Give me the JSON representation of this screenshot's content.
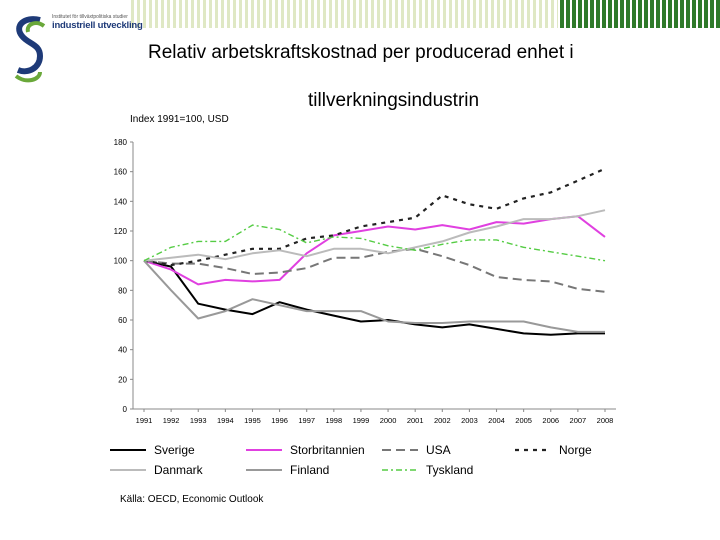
{
  "header": {
    "logo_line1": "Institutet för tillväxtpolitiska studier",
    "logo_line2": "industriell utveckling",
    "title_line1": "Relativ arbetskraftskostnad per producerad enhet i",
    "title_line2": "tillverkningsindustrin"
  },
  "chart_data": {
    "type": "line",
    "index_label": "Index 1991=100, USD",
    "x": [
      "1991",
      "1992",
      "1993",
      "1994",
      "1995",
      "1996",
      "1997",
      "1998",
      "1999",
      "2000",
      "2001",
      "2002",
      "2003",
      "2004",
      "2005",
      "2006",
      "2007",
      "2008"
    ],
    "ylim": [
      0,
      180
    ],
    "yticks": [
      0,
      20,
      40,
      60,
      80,
      100,
      120,
      140,
      160,
      180
    ],
    "grid": false,
    "legend_position": "bottom",
    "series": [
      {
        "name": "Sverige",
        "color": "#000000",
        "dash": "solid",
        "values": [
          100,
          96,
          71,
          67,
          64,
          72,
          67,
          63,
          59,
          60,
          57,
          55,
          57,
          54,
          51,
          50,
          51,
          51
        ]
      },
      {
        "name": "Storbritannien",
        "color": "#e040e0",
        "dash": "solid",
        "values": [
          100,
          94,
          84,
          87,
          86,
          87,
          105,
          117,
          120,
          123,
          121,
          124,
          121,
          126,
          125,
          128,
          130,
          116
        ]
      },
      {
        "name": "USA",
        "color": "#777777",
        "dash": "dashed",
        "values": [
          100,
          98,
          98,
          95,
          91,
          92,
          95,
          102,
          102,
          106,
          108,
          103,
          97,
          89,
          87,
          86,
          81,
          79
        ]
      },
      {
        "name": "Norge",
        "color": "#222222",
        "dash": "dotted",
        "values": [
          100,
          97,
          100,
          104,
          108,
          108,
          115,
          117,
          123,
          126,
          129,
          144,
          138,
          135,
          142,
          146,
          154,
          162
        ]
      },
      {
        "name": "Danmark",
        "color": "#bbbbbb",
        "dash": "solid",
        "values": [
          100,
          102,
          104,
          101,
          105,
          107,
          103,
          108,
          108,
          105,
          109,
          113,
          119,
          123,
          128,
          128,
          130,
          134
        ]
      },
      {
        "name": "Finland",
        "color": "#999999",
        "dash": "solid",
        "values": [
          100,
          80,
          61,
          66,
          74,
          70,
          66,
          66,
          66,
          59,
          58,
          58,
          59,
          59,
          59,
          55,
          52,
          52
        ]
      },
      {
        "name": "Tyskland",
        "color": "#55cc44",
        "dash": "dashdot",
        "values": [
          100,
          109,
          113,
          113,
          124,
          121,
          112,
          116,
          115,
          110,
          107,
          111,
          114,
          114,
          109,
          106,
          103,
          100
        ]
      }
    ],
    "source": "Källa: OECD, Economic Outlook"
  }
}
